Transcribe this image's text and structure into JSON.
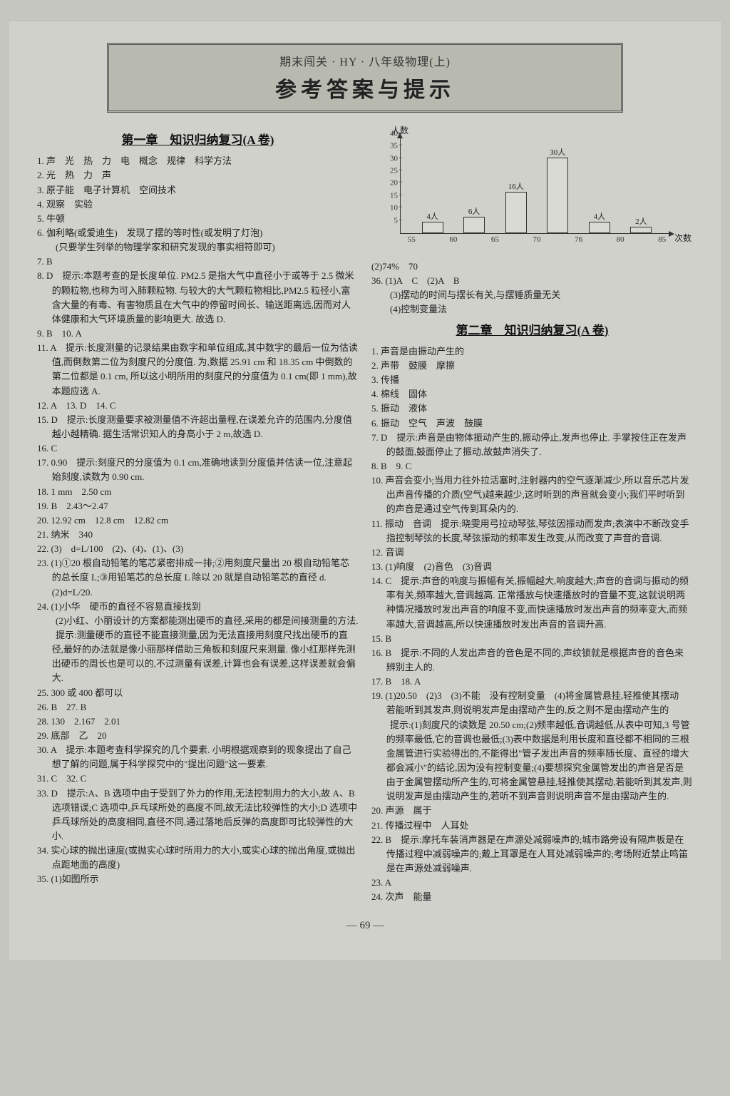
{
  "header": {
    "sub": "期末闯关 · HY · 八年级物理(上)",
    "main": "参考答案与提示"
  },
  "page_number": "69",
  "chapter1_title": "第一章　知识归纳复习(A 卷)",
  "chapter2_title": "第二章　知识归纳复习(A 卷)",
  "left": {
    "i1": "1. 声　光　热　力　电　概念　规律　科学方法",
    "i2": "2. 光　热　力　声",
    "i3": "3. 原子能　电子计算机　空间技术",
    "i4": "4. 观察　实验",
    "i5": "5. 牛顿",
    "i6": "6. 伽利略(或爱迪生)　发现了摆的等时性(或发明了灯泡)",
    "i6b": "　　(只要学生列举的物理学家和研究发现的事实相符即可)",
    "i7": "7. B",
    "i8": "8. D　提示:本题考查的是长度单位. PM2.5 是指大气中直径小于或等于 2.5 微米的颗粒物,也称为可入肺颗粒物. 与较大的大气颗粒物相比,PM2.5 粒径小,富含大量的有毒、有害物质且在大气中的停留时间长、输送距离远,因而对人体健康和大气环境质量的影响更大. 故选 D.",
    "i9": "9. B　10. A",
    "i11": "11. A　提示:长度测量的记录结果由数字和单位组成,其中数字的最后一位为估读值,而倒数第二位为刻度尺的分度值. 为,数据 25.91 cm 和 18.35 cm 中倒数的第二位都是 0.1 cm, 所以这小明所用的刻度尺的分度值为 0.1 cm(即 1 mm),故本题应选 A.",
    "i12": "12. A　13. D　14. C",
    "i15": "15. D　提示:长度测量要求被测量值不许超出量程,在误差允许的范围内,分度值越小越精确. 据生活常识知人的身高小于 2 m,故选 D.",
    "i16": "16. C",
    "i17": "17. 0.90　提示:刻度尺的分度值为 0.1 cm,准确地读到分度值并估读一位,注意起始刻度,读数为 0.90 cm.",
    "i18": "18. 1 mm　2.50 cm",
    "i19": "19. B　2.43～2.47",
    "i20": "20. 12.92 cm　12.8 cm　12.82 cm",
    "i21": "21. 纳米　340",
    "i22": "22. (3)　d=L/100　(2)、(4)、(1)、(3)",
    "i23": "23. (1)①20 根自动铅笔的笔芯紧密排成一排;②用刻度尺量出 20 根自动铅笔芯的总长度 L;③用铅笔芯的总长度 L 除以 20 就是自动铅笔芯的直径 d.　(2)d=L/20.",
    "i24": "24. (1)小华　硬币的直径不容易直接找到",
    "i24b": "　　(2)小红、小丽设计的方案都能测出硬币的直径,采用的都是间接测量的方法.",
    "i24c": "　　提示:测量硬币的直径不能直接测量,因为无法直接用刻度尺找出硬币的直径,最好的办法就是像小丽那样借助三角板和刻度尺来测量. 像小红那样先测出硬币的周长也是可以的,不过测量有误差,计算也会有误差,这样误差就会偏大.",
    "i25": "25. 300 或 400 都可以",
    "i26": "26. B　27. B",
    "i28": "28. 130　2.167　2.01",
    "i29": "29. 底部　乙　20",
    "i30": "30. A　提示:本题考查科学探究的几个要素. 小明根据观察到的现象提出了自己想了解的问题,属于科学探究中的\"提出问题\"这一要素.",
    "i31": "31. C　32. C",
    "i33": "33. D　提示:A、B 选项中由于受到了外力的作用,无法控制用力的大小,故 A、B 选项错误;C 选项中,乒乓球所处的高度不同,故无法比较弹性的大小;D 选项中乒乓球所处的高度相同,直径不同,通过落地后反弹的高度即可比较弹性的大小.",
    "i34": "34. 实心球的抛出速度(或抛实心球时所用力的大小,或实心球的抛出角度,或抛出点距地面的高度)",
    "i35": "35. (1)如图所示"
  },
  "chart": {
    "y_label": "人数",
    "x_label": "次数",
    "ylim": [
      0,
      40
    ],
    "ytick_step": 5,
    "categories": [
      "55",
      "60",
      "65",
      "70",
      "76",
      "80",
      "85"
    ],
    "bars": [
      {
        "x": 0,
        "value": 4,
        "label": "4人"
      },
      {
        "x": 1,
        "value": 6,
        "label": "6人"
      },
      {
        "x": 2,
        "value": 16,
        "label": "16人"
      },
      {
        "x": 3,
        "value": 30,
        "label": "30人"
      },
      {
        "x": 4,
        "value": 4,
        "label": "4人"
      },
      {
        "x": 5,
        "value": 2,
        "label": "2人"
      }
    ],
    "bar_fill": "#d9dad4",
    "bar_border": "#333333",
    "axis_color": "#333333",
    "axis_fontsize": 11
  },
  "right": {
    "post_chart_1": "(2)74%　70",
    "i36": "36. (1)A　C　(2)A　B",
    "i36b": "　　(3)摆动的时间与摆长有关,与摆锤质量无关",
    "i36c": "　　(4)控制变量法",
    "c1": "1. 声音是由振动产生的",
    "c2": "2. 声带　鼓膜　摩擦",
    "c3": "3. 传播",
    "c4": "4. 棉线　固体",
    "c5": "5. 振动　液体",
    "c6": "6. 振动　空气　声波　鼓膜",
    "c7": "7. D　提示:声音是由物体振动产生的,振动停止,发声也停止. 手掌按住正在发声的鼓面,鼓面停止了振动,故鼓声消失了.",
    "c8": "8. B　9. C",
    "c10": "10. 声音会变小;当用力往外拉活塞时,注射器内的空气逐渐减少,所以音乐芯片发出声音传播的介质(空气)越来越少,这时听到的声音就会变小;我们平时听到的声音是通过空气传到耳朵内的.",
    "c11": "11. 振动　音调　提示:晓雯用弓拉动琴弦,琴弦因振动而发声;表演中不断改变手指控制琴弦的长度,琴弦振动的频率发生改变,从而改变了声音的音调.",
    "c12": "12. 音调",
    "c13": "13. (1)响度　(2)音色　(3)音调",
    "c14": "14. C　提示:声音的响度与振幅有关,振幅越大,响度越大;声音的音调与振动的频率有关,频率越大,音调越高. 正常播放与快速播放时的音量不变,这就说明两种情况播放时发出声音的响度不变,而快速播放时发出声音的频率变大,而频率越大,音调越高,所以快速播放时发出声音的音调升高.",
    "c15": "15. B",
    "c16": "16. B　提示:不同的人发出声音的音色是不同的,声纹锁就是根据声音的音色来辨别主人的.",
    "c17": "17. B　18. A",
    "c19": "19. (1)20.50　(2)3　(3)不能　没有控制变量　(4)将金属管悬挂,轻推使其摆动　若能听到其发声,则说明发声是由摆动产生的,反之则不是由摆动产生的",
    "c19b": "　　提示:(1)刻度尺的读数是 20.50 cm;(2)频率越低,音调越低,从表中可知,3 号管的频率最低,它的音调也最低;(3)表中数据是利用长度和直径都不相同的三根金属管进行实验得出的,不能得出\"管子发出声音的频率随长度、直径的增大都会减小\"的结论,因为没有控制变量;(4)要想探究金属管发出的声音是否是由于金属管摆动所产生的,可将金属管悬挂,轻推使其摆动,若能听到其发声,则说明发声是由摆动产生的,若听不到声音则说明声音不是由摆动产生的.",
    "c20": "20. 声源　属于",
    "c21": "21. 传播过程中　人耳处",
    "c22": "22. B　提示:摩托车装消声器是在声源处减弱噪声的;城市路旁设有隔声板是在传播过程中减弱噪声的;戴上耳罩是在人耳处减弱噪声的;考场附近禁止鸣笛是在声源处减弱噪声.",
    "c23": "23. A",
    "c24": "24. 次声　能量"
  }
}
